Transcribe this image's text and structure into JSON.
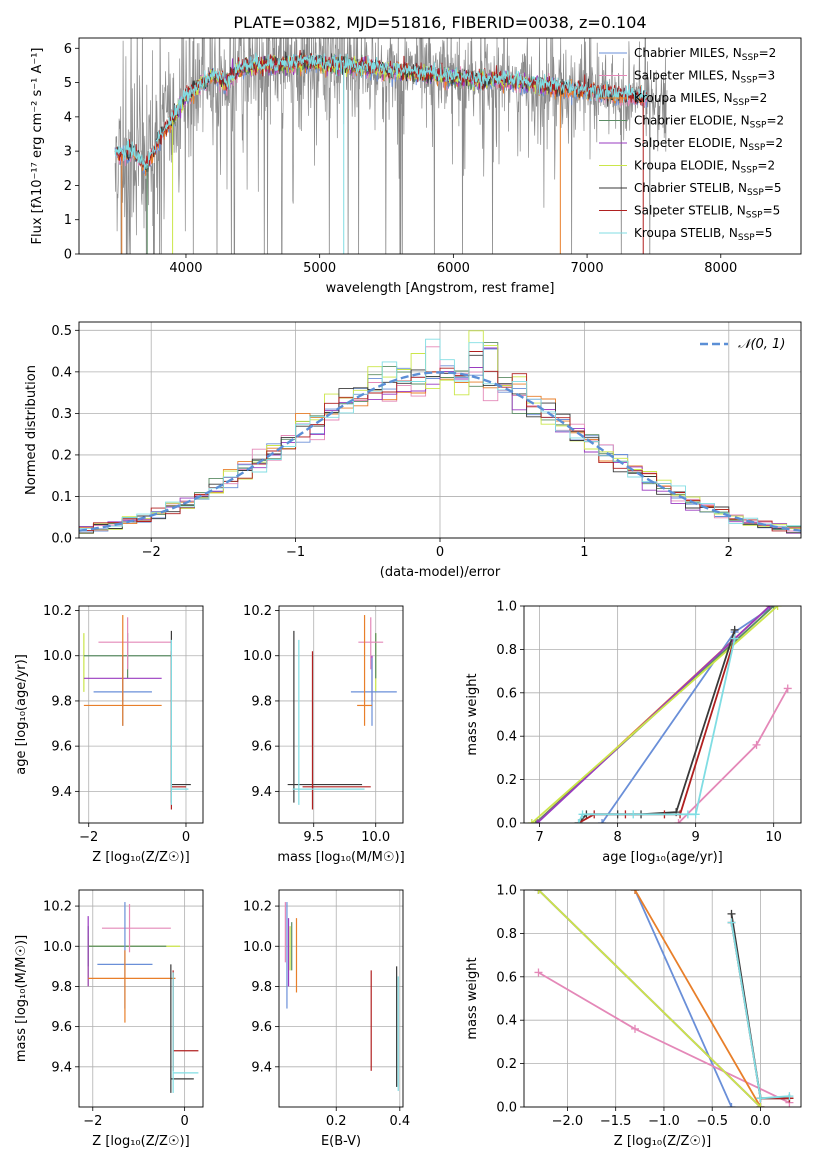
{
  "figure_title": "PLATE=0382, MJD=51816, FIBERID=0038, z=0.104",
  "colors": {
    "chab_miles": "#6a8fd8",
    "salp_miles": "#e488b8",
    "krou_miles": "#e87f2a",
    "chab_elodie": "#5b8c64",
    "salp_elodie": "#9a3bc0",
    "krou_elodie": "#cbe64a",
    "chab_stelib": "#3a3a3a",
    "salp_stelib": "#b02020",
    "krou_stelib": "#80dde3",
    "data_grey": "#8a8a8a",
    "gauss": "#5b8fd6"
  },
  "chart_data": [
    {
      "id": "spectrum",
      "type": "line",
      "xlabel": "wavelength [Angstrom, rest frame]",
      "ylabel": "Flux [f$_\\lambda$10$^{-17}$ erg cm$^{-2}$ s$^{-1}$ A$^{-1}$]",
      "ylabel_display": "Flux [fλ10⁻¹⁷ erg cm⁻² s⁻¹ A⁻¹]",
      "xlim": [
        3200,
        8600
      ],
      "ylim": [
        0,
        6.3
      ],
      "xticks": [
        4000,
        5000,
        6000,
        7000,
        8000
      ],
      "yticks": [
        0,
        1,
        2,
        3,
        4,
        5,
        6
      ],
      "continuum": {
        "x": [
          3470,
          3520,
          3600,
          3700,
          3800,
          3900,
          4000,
          4100,
          4200,
          4300,
          4400,
          4500,
          4700,
          4900,
          5100,
          5300,
          5500,
          5800,
          6100,
          6400,
          6700,
          7000,
          7300,
          7600
        ],
        "y": [
          3.0,
          2.9,
          3.0,
          2.5,
          3.4,
          3.9,
          4.6,
          4.9,
          5.2,
          5.0,
          5.4,
          5.5,
          5.5,
          5.6,
          5.5,
          5.45,
          5.35,
          5.25,
          5.1,
          5.05,
          4.9,
          4.75,
          4.6,
          4.45
        ]
      },
      "legend": [
        {
          "label": "Chabrier MILES, N",
          "sub": "SSP",
          "suffix": "=2",
          "color_key": "chab_miles"
        },
        {
          "label": "Salpeter MILES, N",
          "sub": "SSP",
          "suffix": "=3",
          "color_key": "salp_miles"
        },
        {
          "label": "Kroupa MILES, N",
          "sub": "SSP",
          "suffix": "=2",
          "color_key": "krou_miles"
        },
        {
          "label": "Chabrier ELODIE, N",
          "sub": "SSP",
          "suffix": "=2",
          "color_key": "chab_elodie"
        },
        {
          "label": "Salpeter ELODIE, N",
          "sub": "SSP",
          "suffix": "=2",
          "color_key": "salp_elodie"
        },
        {
          "label": "Kroupa ELODIE, N",
          "sub": "SSP",
          "suffix": "=2",
          "color_key": "krou_elodie"
        },
        {
          "label": "Chabrier STELIB, N",
          "sub": "SSP",
          "suffix": "=5",
          "color_key": "chab_stelib"
        },
        {
          "label": "Salpeter STELIB, N",
          "sub": "SSP",
          "suffix": "=5",
          "color_key": "salp_stelib"
        },
        {
          "label": "Kroupa STELIB, N",
          "sub": "SSP",
          "suffix": "=5",
          "color_key": "krou_stelib"
        }
      ]
    },
    {
      "id": "residuals",
      "type": "line",
      "xlabel": "(data-model)/error",
      "ylabel": "Normed distribution",
      "xlim": [
        -2.5,
        2.5
      ],
      "ylim": [
        0,
        0.52
      ],
      "xticks": [
        -2,
        -1,
        0,
        1,
        2
      ],
      "xtick_labels": [
        "−2",
        "−1",
        "0",
        "1",
        "2"
      ],
      "yticks": [
        0.0,
        0.1,
        0.2,
        0.3,
        0.4,
        0.5
      ],
      "ytick_labels": [
        "0.0",
        "0.1",
        "0.2",
        "0.3",
        "0.4",
        "0.5"
      ],
      "legend": [
        {
          "label": "𝒩(0, 1)",
          "color_key": "gauss"
        }
      ],
      "gauss": {
        "mean": 0,
        "sigma": 1
      },
      "hist_bin_width": 0.1
    },
    {
      "id": "age_vs_Z",
      "type": "scatter",
      "xlabel": "Z [log₁₀(Z/Z☉)]",
      "ylabel": "age  [log₁₀(age/yr)]",
      "xlim": [
        -2.2,
        0.35
      ],
      "ylim": [
        9.26,
        10.22
      ],
      "xticks": [
        -2,
        0
      ],
      "xtick_labels": [
        "−2",
        "0"
      ],
      "yticks": [
        9.4,
        9.6,
        9.8,
        10.0,
        10.2
      ],
      "ytick_labels": [
        "9.4",
        "9.6",
        "9.8",
        "10.0",
        "10.2"
      ],
      "points": [
        {
          "c": "krou_elodie",
          "x": -2.1,
          "xe": [
            0.0,
            0.0
          ],
          "y": 10.04,
          "ye": [
            0.2,
            0.06
          ]
        },
        {
          "c": "chab_elodie",
          "x": -1.2,
          "xe": [
            0.9,
            0.9
          ],
          "y": 10.0,
          "ye": [
            0.1,
            0.1
          ]
        },
        {
          "c": "salp_miles",
          "x": -1.2,
          "xe": [
            0.6,
            0.9
          ],
          "y": 10.06,
          "ye": [
            0.12,
            0.11
          ]
        },
        {
          "c": "salp_elodie",
          "x": -1.3,
          "xe": [
            0.8,
            0.8
          ],
          "y": 9.9,
          "ye": [
            0.1,
            0.1
          ]
        },
        {
          "c": "chab_miles",
          "x": -1.3,
          "xe": [
            0.6,
            0.6
          ],
          "y": 9.84,
          "ye": [
            0.15,
            0.15
          ]
        },
        {
          "c": "krou_miles",
          "x": -1.3,
          "xe": [
            0.8,
            0.8
          ],
          "y": 9.78,
          "ye": [
            0.09,
            0.4
          ]
        },
        {
          "c": "chab_stelib",
          "x": -0.3,
          "xe": [
            0.0,
            0.4
          ],
          "y": 9.43,
          "ye": [
            0.08,
            0.68
          ]
        },
        {
          "c": "salp_stelib",
          "x": -0.3,
          "xe": [
            0.0,
            0.3
          ],
          "y": 9.42,
          "ye": [
            0.1,
            0.6
          ]
        },
        {
          "c": "krou_stelib",
          "x": -0.3,
          "xe": [
            0.0,
            0.35
          ],
          "y": 9.41,
          "ye": [
            0.07,
            0.66
          ]
        }
      ]
    },
    {
      "id": "age_vs_mass",
      "type": "scatter",
      "xlabel": "mass [log₁₀(M/M☉)]",
      "ylabel": "",
      "xlim": [
        9.22,
        10.22
      ],
      "ylim": [
        9.26,
        10.22
      ],
      "xticks": [
        9.5,
        10.0
      ],
      "xtick_labels": [
        "9.5",
        "10.0"
      ],
      "yticks": [
        9.4,
        9.6,
        9.8,
        10.0,
        10.2
      ],
      "ytick_labels": [
        "9.4",
        "9.6",
        "9.8",
        "10.0",
        "10.2"
      ],
      "points": [
        {
          "c": "krou_elodie",
          "x": 10.0,
          "xe": [
            0.0,
            0.0
          ],
          "y": 10.04,
          "ye": [
            0.2,
            0.06
          ]
        },
        {
          "c": "chab_elodie",
          "x": 10.0,
          "xe": [
            0.0,
            0.0
          ],
          "y": 10.0,
          "ye": [
            0.1,
            0.1
          ]
        },
        {
          "c": "salp_miles",
          "x": 9.96,
          "xe": [
            0.1,
            0.1
          ],
          "y": 10.06,
          "ye": [
            0.12,
            0.11
          ]
        },
        {
          "c": "salp_elodie",
          "x": 9.97,
          "xe": [
            0.0,
            0.0
          ],
          "y": 9.9,
          "ye": [
            0.1,
            0.1
          ]
        },
        {
          "c": "chab_miles",
          "x": 9.97,
          "xe": [
            0.17,
            0.2
          ],
          "y": 9.84,
          "ye": [
            0.15,
            0.15
          ]
        },
        {
          "c": "krou_miles",
          "x": 9.91,
          "xe": [
            0.06,
            0.06
          ],
          "y": 9.78,
          "ye": [
            0.09,
            0.4
          ]
        },
        {
          "c": "chab_stelib",
          "x": 9.34,
          "xe": [
            0.05,
            0.55
          ],
          "y": 9.43,
          "ye": [
            0.08,
            0.68
          ]
        },
        {
          "c": "salp_stelib",
          "x": 9.49,
          "xe": [
            0.08,
            0.47
          ],
          "y": 9.42,
          "ye": [
            0.1,
            0.6
          ]
        },
        {
          "c": "krou_stelib",
          "x": 9.38,
          "xe": [
            0.05,
            0.53
          ],
          "y": 9.41,
          "ye": [
            0.07,
            0.66
          ]
        }
      ]
    },
    {
      "id": "weight_vs_age",
      "type": "line",
      "xlabel": "age  [log₁₀(age/yr)]",
      "ylabel": "mass weight",
      "xlim": [
        6.8,
        10.35
      ],
      "ylim": [
        0,
        1.0
      ],
      "xticks": [
        7,
        8,
        9,
        10
      ],
      "xtick_labels": [
        "7",
        "8",
        "9",
        "10"
      ],
      "yticks": [
        0,
        0.2,
        0.4,
        0.6,
        0.8,
        1.0
      ],
      "ytick_labels": [
        "0.0",
        "0.2",
        "0.4",
        "0.6",
        "0.8",
        "1.0"
      ],
      "series": [
        {
          "c": "chab_miles",
          "x": [
            7.8,
            9.5,
            10.0
          ],
          "y": [
            0.0,
            0.88,
            1.0
          ]
        },
        {
          "c": "salp_miles",
          "x": [
            8.78,
            9.78,
            10.18
          ],
          "y": [
            0.0,
            0.36,
            0.62
          ]
        },
        {
          "c": "krou_miles",
          "x": [
            6.95,
            9.95
          ],
          "y": [
            0.0,
            1.0
          ]
        },
        {
          "c": "chab_elodie",
          "x": [
            6.95,
            10.0
          ],
          "y": [
            0.0,
            1.0
          ]
        },
        {
          "c": "salp_elodie",
          "x": [
            6.97,
            9.95
          ],
          "y": [
            0.0,
            1.0
          ]
        },
        {
          "c": "krou_elodie",
          "x": [
            6.9,
            10.05
          ],
          "y": [
            0.0,
            1.0
          ]
        },
        {
          "c": "chab_stelib",
          "x": [
            7.5,
            7.6,
            8.0,
            8.3,
            8.75,
            9.5
          ],
          "y": [
            0.0,
            0.04,
            0.04,
            0.04,
            0.05,
            0.89
          ]
        },
        {
          "c": "salp_stelib",
          "x": [
            7.5,
            7.7,
            8.1,
            8.6,
            8.8,
            9.5
          ],
          "y": [
            0.0,
            0.04,
            0.04,
            0.04,
            0.04,
            0.85
          ]
        },
        {
          "c": "krou_stelib",
          "x": [
            7.5,
            7.55,
            8.2,
            8.9,
            9.0,
            9.5
          ],
          "y": [
            0.0,
            0.04,
            0.04,
            0.04,
            0.04,
            0.85
          ]
        }
      ]
    },
    {
      "id": "mass_vs_Z",
      "type": "scatter",
      "xlabel": "Z [log₁₀(Z/Z☉)]",
      "ylabel": "mass [log₁₀(M/M☉)]",
      "xlim": [
        -2.3,
        0.4
      ],
      "ylim": [
        9.2,
        10.28
      ],
      "xticks": [
        -2,
        0
      ],
      "xtick_labels": [
        "−2",
        "0"
      ],
      "yticks": [
        9.4,
        9.6,
        9.8,
        10.0,
        10.2
      ],
      "ytick_labels": [
        "9.4",
        "9.6",
        "9.8",
        "10.0",
        "10.2"
      ],
      "points": [
        {
          "c": "krou_elodie",
          "x": -2.1,
          "xe": [
            0.0,
            2.0
          ],
          "y": 10.0,
          "ye": [
            0.2,
            0.05
          ]
        },
        {
          "c": "chab_elodie",
          "x": -2.1,
          "xe": [
            0.0,
            1.7
          ],
          "y": 10.0,
          "ye": [
            0.1,
            0.1
          ]
        },
        {
          "c": "salp_miles",
          "x": -1.2,
          "xe": [
            0.6,
            0.9
          ],
          "y": 10.09,
          "ye": [
            0.12,
            0.12
          ]
        },
        {
          "c": "salp_elodie",
          "x": -2.1,
          "xe": [
            0.0,
            0.0
          ],
          "y": 10.05,
          "ye": [
            0.25,
            0.1
          ]
        },
        {
          "c": "chab_miles",
          "x": -1.3,
          "xe": [
            0.6,
            0.6
          ],
          "y": 9.91,
          "ye": [
            0.22,
            0.31
          ]
        },
        {
          "c": "krou_miles",
          "x": -1.3,
          "xe": [
            0.8,
            1.1
          ],
          "y": 9.84,
          "ye": [
            0.22,
            0.14
          ]
        },
        {
          "c": "chab_stelib",
          "x": -0.3,
          "xe": [
            0.0,
            0.5
          ],
          "y": 9.34,
          "ye": [
            0.07,
            0.57
          ]
        },
        {
          "c": "salp_stelib",
          "x": -0.25,
          "xe": [
            0.0,
            0.55
          ],
          "y": 9.48,
          "ye": [
            0.1,
            0.4
          ]
        },
        {
          "c": "krou_stelib",
          "x": -0.25,
          "xe": [
            0.0,
            0.55
          ],
          "y": 9.37,
          "ye": [
            0.1,
            0.5
          ]
        }
      ]
    },
    {
      "id": "mass_vs_ebv",
      "type": "scatter",
      "xlabel": "E(B-V)",
      "ylabel": "",
      "xlim": [
        0.02,
        0.41
      ],
      "ylim": [
        9.2,
        10.28
      ],
      "xticks": [
        0.2,
        0.4
      ],
      "xtick_labels": [
        "0.2",
        "0.4"
      ],
      "yticks": [
        9.4,
        9.6,
        9.8,
        10.0,
        10.2
      ],
      "ytick_labels": [
        "9.4",
        "9.6",
        "9.8",
        "10.0",
        "10.2"
      ],
      "points": [
        {
          "c": "salp_miles",
          "x": 0.04,
          "xe": [
            0,
            0
          ],
          "y": 10.07,
          "ye": [
            0.15,
            0.15
          ]
        },
        {
          "c": "chab_miles",
          "x": 0.045,
          "xe": [
            0,
            0
          ],
          "y": 9.97,
          "ye": [
            0.28,
            0.25
          ]
        },
        {
          "c": "salp_elodie",
          "x": 0.05,
          "xe": [
            0,
            0
          ],
          "y": 10.0,
          "ye": [
            0.2,
            0.14
          ]
        },
        {
          "c": "krou_elodie",
          "x": 0.055,
          "xe": [
            0,
            0
          ],
          "y": 10.0,
          "ye": [
            0.12,
            0.1
          ]
        },
        {
          "c": "chab_elodie",
          "x": 0.06,
          "xe": [
            0,
            0
          ],
          "y": 10.0,
          "ye": [
            0.12,
            0.12
          ]
        },
        {
          "c": "krou_miles",
          "x": 0.075,
          "xe": [
            0,
            0
          ],
          "y": 9.95,
          "ye": [
            0.18,
            0.19
          ]
        },
        {
          "c": "salp_stelib",
          "x": 0.31,
          "xe": [
            0,
            0
          ],
          "y": 9.63,
          "ye": [
            0.25,
            0.25
          ]
        },
        {
          "c": "chab_stelib",
          "x": 0.39,
          "xe": [
            0,
            0
          ],
          "y": 9.6,
          "ye": [
            0.3,
            0.3
          ]
        },
        {
          "c": "krou_stelib",
          "x": 0.395,
          "xe": [
            0,
            0
          ],
          "y": 9.55,
          "ye": [
            0.27,
            0.3
          ]
        }
      ]
    },
    {
      "id": "weight_vs_Z",
      "type": "line",
      "xlabel": "Z [log₁₀(Z/Z☉)]",
      "ylabel": "mass weight",
      "xlim": [
        -2.45,
        0.42
      ],
      "ylim": [
        0,
        1.0
      ],
      "xticks": [
        -2.0,
        -1.5,
        -1.0,
        -0.5,
        0.0
      ],
      "xtick_labels": [
        "−2.0",
        "−1.5",
        "−1.0",
        "−0.5",
        "0.0"
      ],
      "yticks": [
        0,
        0.2,
        0.4,
        0.6,
        0.8,
        1.0
      ],
      "ytick_labels": [
        "0.0",
        "0.2",
        "0.4",
        "0.6",
        "0.8",
        "1.0"
      ],
      "series": [
        {
          "c": "chab_miles",
          "x": [
            -1.3,
            -0.3
          ],
          "y": [
            1.0,
            0.0
          ]
        },
        {
          "c": "salp_miles",
          "x": [
            -2.3,
            -1.3,
            0.3
          ],
          "y": [
            0.62,
            0.36,
            0.02
          ]
        },
        {
          "c": "krou_miles",
          "x": [
            -1.3,
            0.0
          ],
          "y": [
            1.0,
            0.0
          ]
        },
        {
          "c": "chab_elodie",
          "x": [
            -2.3,
            0.0
          ],
          "y": [
            1.0,
            0.0
          ]
        },
        {
          "c": "salp_elodie",
          "x": [
            -2.3,
            0.0
          ],
          "y": [
            1.0,
            0.0
          ]
        },
        {
          "c": "krou_elodie",
          "x": [
            -2.3,
            0.0
          ],
          "y": [
            1.0,
            0.0
          ]
        },
        {
          "c": "chab_stelib",
          "x": [
            -0.3,
            0.0,
            0.3
          ],
          "y": [
            0.89,
            0.04,
            0.04
          ]
        },
        {
          "c": "salp_stelib",
          "x": [
            -0.3,
            0.0,
            0.3
          ],
          "y": [
            0.85,
            0.04,
            0.04
          ]
        },
        {
          "c": "krou_stelib",
          "x": [
            -0.3,
            0.0,
            0.3
          ],
          "y": [
            0.85,
            0.04,
            0.05
          ]
        }
      ]
    }
  ]
}
